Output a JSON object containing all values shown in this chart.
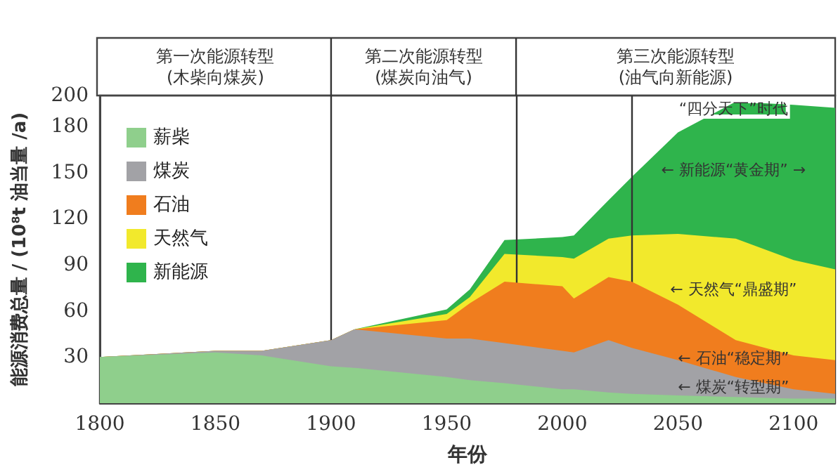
{
  "chart_data": {
    "type": "area",
    "stacked": true,
    "xlabel": "年份",
    "ylabel": "能源消费总量 / (10⁸t 油当量 /a)",
    "x": [
      1800,
      1850,
      1870,
      1900,
      1910,
      1950,
      1960,
      1975,
      2000,
      2005,
      2020,
      2030,
      2050,
      2075,
      2100,
      2118
    ],
    "series": [
      {
        "name": "薪柴",
        "color": "#8fcf8c",
        "values": [
          30,
          33,
          31,
          24,
          23,
          17,
          15,
          13,
          9,
          9,
          7,
          6,
          5,
          4,
          3,
          3
        ]
      },
      {
        "name": "煤炭",
        "color": "#a2a2a6",
        "values": [
          0,
          1,
          3,
          17,
          25,
          25,
          27,
          26,
          25,
          24,
          34,
          30,
          23,
          13,
          6,
          3
        ]
      },
      {
        "name": "石油",
        "color": "#f07d1e",
        "values": [
          0,
          0,
          0,
          0,
          0,
          12,
          23,
          40,
          42,
          35,
          41,
          43,
          36,
          24,
          22,
          22
        ]
      },
      {
        "name": "天然气",
        "color": "#f2e92c",
        "values": [
          0,
          0,
          0,
          0,
          0,
          4,
          4,
          18,
          19,
          26,
          25,
          30,
          46,
          66,
          62,
          59
        ]
      },
      {
        "name": "新能源",
        "color": "#2fb44c",
        "values": [
          0,
          0,
          0,
          0,
          0,
          3,
          5,
          9,
          13,
          15,
          25,
          38,
          66,
          89,
          101,
          105
        ]
      }
    ],
    "xlim": [
      1800,
      2118
    ],
    "xticks": [
      1800,
      1850,
      1900,
      1950,
      2000,
      2050,
      2100
    ],
    "ylim": [
      0,
      200
    ],
    "yticks": [
      30,
      60,
      90,
      120,
      150,
      180,
      200
    ],
    "legend": "top left",
    "grid": false,
    "ref_lines": [
      {
        "axis": "x",
        "value": 1900
      },
      {
        "axis": "x",
        "value": 1980
      },
      {
        "axis": "x",
        "value": 2030
      }
    ],
    "annotations": [
      "第一次能源转型\n(木柴向煤炭)",
      "第二次能源转型\n(煤炭向油气)",
      "第三次能源转型\n(油气向新能源)",
      "“四分天下”时代",
      "← 新能源“黄金期” →",
      "← 天然气“鼎盛期”",
      "← 石油“稳定期”",
      "← 煤炭“转型期”"
    ]
  }
}
